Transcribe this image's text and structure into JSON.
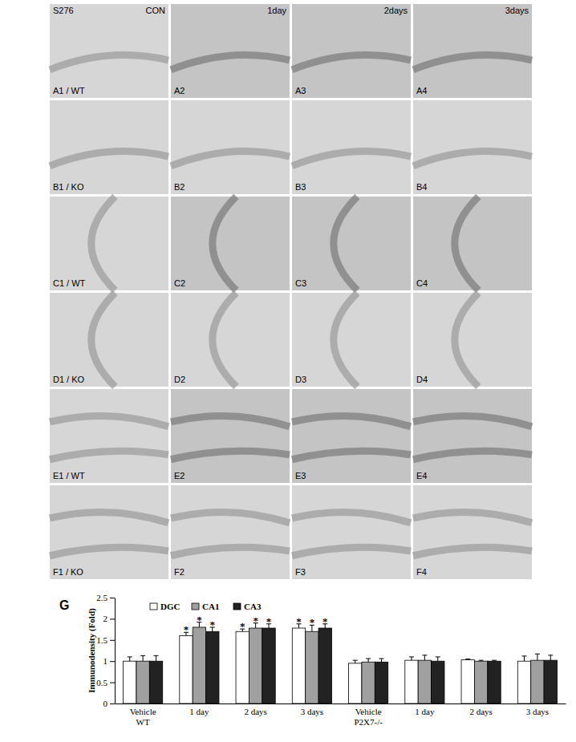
{
  "panels": {
    "corner_label": "S276",
    "column_headers": [
      "CON",
      "1day",
      "2days",
      "3days"
    ],
    "rows": [
      [
        "A1 / WT",
        "A2",
        "A3",
        "A4"
      ],
      [
        "B1 / KO",
        "B2",
        "B3",
        "B4"
      ],
      [
        "C1 / WT",
        "C2",
        "C3",
        "C4"
      ],
      [
        "D1 / KO",
        "D2",
        "D3",
        "D4"
      ],
      [
        "E1 / WT",
        "E2",
        "E3",
        "E4"
      ],
      [
        "F1 / KO",
        "F2",
        "F3",
        "F4"
      ]
    ]
  },
  "chart_data": {
    "type": "bar",
    "title": "G",
    "y_label": "Immunodensity (Fold)",
    "categories": [
      "Vehicle\nWT",
      "1 day",
      "2 days",
      "3 days",
      "Vehicle\nP2X7-/-",
      "1 day",
      "2 days",
      "3 days"
    ],
    "series": [
      {
        "name": "DGC",
        "color": "#ffffff",
        "values": [
          1.0,
          1.6,
          1.7,
          1.78,
          0.95,
          1.02,
          1.03,
          1.0
        ],
        "errors": [
          0.1,
          0.08,
          0.06,
          0.1,
          0.07,
          0.08,
          0.02,
          0.12
        ],
        "significance": [
          null,
          "*",
          "*",
          "*",
          null,
          null,
          null,
          null
        ]
      },
      {
        "name": "CA1",
        "color": "#a0a0a0",
        "values": [
          1.0,
          1.8,
          1.78,
          1.7,
          0.98,
          1.02,
          1.0,
          1.02
        ],
        "errors": [
          0.13,
          0.12,
          0.12,
          0.15,
          0.08,
          0.12,
          0.02,
          0.15
        ],
        "significance": [
          null,
          "*",
          "*",
          "*",
          null,
          null,
          null,
          null
        ]
      },
      {
        "name": "CA3",
        "color": "#222222",
        "values": [
          1.0,
          1.7,
          1.78,
          1.78,
          0.98,
          1.0,
          1.0,
          1.02
        ],
        "errors": [
          0.13,
          0.1,
          0.1,
          0.1,
          0.08,
          0.1,
          0.02,
          0.12
        ],
        "significance": [
          null,
          "*",
          "*",
          "*",
          null,
          null,
          null,
          null
        ]
      }
    ],
    "ylim": [
      0,
      2.5
    ],
    "yticks": [
      0,
      0.5,
      1,
      1.5,
      2,
      2.5
    ],
    "legend": "top"
  }
}
